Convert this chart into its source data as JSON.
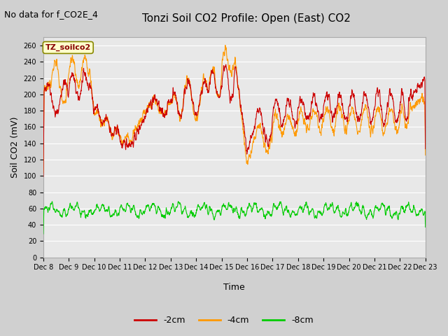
{
  "title": "Tonzi Soil CO2 Profile: Open (East) CO2",
  "subtitle": "No data for f_CO2E_4",
  "ylabel": "Soil CO2 (mV)",
  "xlabel": "Time",
  "ylim": [
    0,
    270
  ],
  "yticks": [
    0,
    20,
    40,
    60,
    80,
    100,
    120,
    140,
    160,
    180,
    200,
    220,
    240,
    260
  ],
  "xtick_labels": [
    "Dec 8",
    "Dec 9",
    "Dec 10",
    "Dec 11",
    "Dec 12",
    "Dec 13",
    "Dec 14",
    "Dec 15",
    "Dec 16",
    "Dec 17",
    "Dec 18",
    "Dec 19",
    "Dec 20",
    "Dec 21",
    "Dec 22",
    "Dec 23"
  ],
  "line_neg2cm_color": "#cc0000",
  "line_neg4cm_color": "#ff9900",
  "line_neg8cm_color": "#00cc00",
  "legend_box_color": "#ffffcc",
  "legend_box_edge": "#888800",
  "legend_label": "TZ_soilco2",
  "fig_bg_color": "#d0d0d0",
  "plot_bg_color": "#e8e8e8",
  "title_fontsize": 11,
  "subtitle_fontsize": 9,
  "axis_fontsize": 9,
  "tick_fontsize": 7,
  "legend_fontsize": 9
}
